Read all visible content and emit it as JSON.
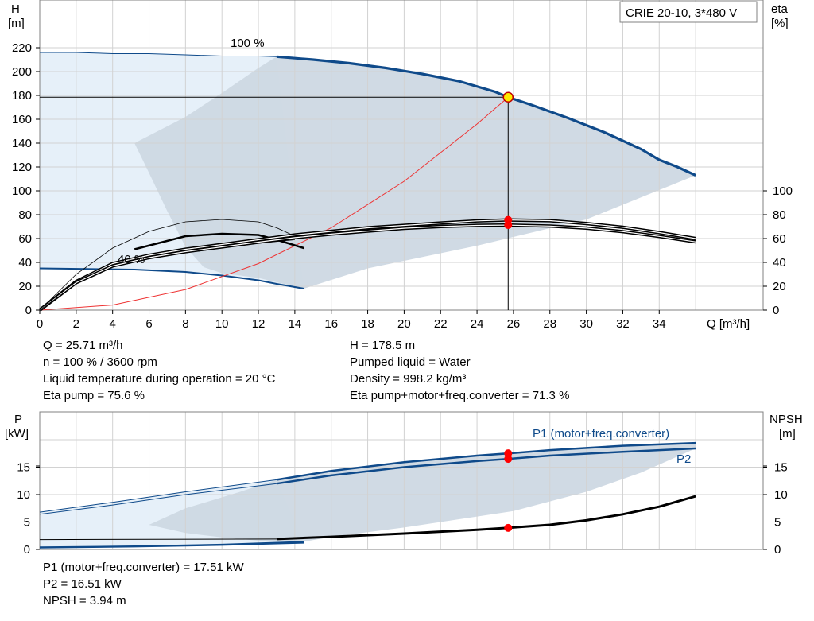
{
  "labels": {
    "h_axis": "H",
    "h_unit": "[m]",
    "eta_axis": "eta",
    "eta_unit": "[%]",
    "q_axis": "Q [m³/h]",
    "pump_box": "CRIE 20-10, 3*480 V",
    "curve_100": "100 %",
    "curve_40": "40 %",
    "p_axis": "P",
    "p_unit": "[kW]",
    "npsh_axis": "NPSH",
    "npsh_unit": "[m]",
    "p1_curve": "P1 (motor+freq.converter)",
    "p2_curve": "P2"
  },
  "info": {
    "q": "Q = 25.71 m³/h",
    "n": "n = 100 % / 3600 rpm",
    "temp": "Liquid temperature during operation = 20 °C",
    "eta_pump": "Eta pump = 75.6 %",
    "h": "H = 178.5 m",
    "liquid": "Pumped liquid = Water",
    "density": "Density = 998.2 kg/m³",
    "eta_total": "Eta pump+motor+freq.converter = 71.3 %",
    "p1": "P1 (motor+freq.converter) = 17.51 kW",
    "p2": "P2 = 16.51 kW",
    "npsh": "NPSH = 3.94 m"
  },
  "colors": {
    "pump_curve": "#0f4a8a",
    "work_area": "#cdd8e3",
    "extended_area": "#e6f0f9",
    "system_curve": "#ee3333",
    "duty_point": "#ff0000",
    "duty_marker": "#ffea00"
  },
  "chart_data": [
    {
      "type": "line",
      "title": "",
      "xlabel": "Q [m³/h]",
      "ylabel": "H [m]",
      "y2label": "eta [%]",
      "xlim": [
        0,
        36
      ],
      "ylim": [
        0,
        230
      ],
      "y2lim": [
        0,
        100
      ],
      "x_ticks": [
        0,
        2,
        4,
        6,
        8,
        10,
        12,
        14,
        16,
        18,
        20,
        22,
        24,
        26,
        28,
        30,
        32,
        34
      ],
      "y_ticks": [
        0,
        20,
        40,
        60,
        80,
        100,
        120,
        140,
        160,
        180,
        200,
        220
      ],
      "y2_ticks": [
        0,
        20,
        40,
        60,
        80,
        100
      ],
      "grid": true,
      "series": [
        {
          "name": "100 %",
          "axis": "H",
          "x": [
            0,
            2,
            4,
            6,
            8,
            10,
            12,
            13,
            15,
            17,
            19,
            21,
            23,
            25,
            25.71,
            27,
            29,
            31,
            33,
            34,
            35,
            36
          ],
          "y": [
            216,
            216,
            215,
            215,
            214,
            213,
            213,
            212.5,
            210,
            207,
            203,
            198,
            192,
            183,
            178.5,
            172,
            161,
            149,
            135,
            126,
            120,
            113
          ]
        },
        {
          "name": "40 %",
          "axis": "H",
          "x": [
            0,
            5.2,
            8,
            10,
            12,
            13,
            14.5
          ],
          "y": [
            35,
            34,
            32,
            29,
            25,
            22,
            18
          ]
        },
        {
          "axis": "H",
          "x": [
            0,
            4,
            8,
            12,
            16,
            20,
            24,
            25.71
          ],
          "y": [
            0,
            4.3,
            17.3,
            39,
            69,
            108,
            156,
            178.5
          ]
        },
        {
          "axis": "eta",
          "x": [
            5.2,
            8,
            10,
            12,
            13,
            14.5
          ],
          "y": [
            51,
            62,
            64,
            63,
            59,
            52
          ]
        },
        {
          "axis": "eta",
          "x": [
            0,
            2,
            4,
            6,
            8,
            10,
            12,
            13,
            14
          ],
          "y": [
            0,
            30,
            52,
            66,
            74,
            76,
            74,
            69,
            62
          ]
        },
        {
          "axis": "eta",
          "x": [
            0,
            2,
            4,
            6,
            8,
            10,
            12,
            14,
            16,
            18,
            20,
            22,
            24,
            25.71,
            28,
            30,
            32,
            34,
            36
          ],
          "y": [
            0,
            24,
            39,
            46,
            51,
            55,
            59,
            63,
            66,
            69,
            71,
            73,
            74.8,
            75.6,
            75,
            72.6,
            69.5,
            65,
            60
          ]
        },
        {
          "axis": "eta",
          "x": [
            0,
            2,
            4,
            6,
            8,
            10,
            12,
            14,
            16,
            18,
            20,
            22,
            24,
            25.71,
            28,
            30,
            32,
            34,
            36
          ],
          "y": [
            0,
            23,
            37,
            44,
            49,
            53,
            57,
            60.7,
            63.7,
            66.3,
            68.6,
            70.1,
            71,
            71.3,
            70.5,
            68.7,
            65.8,
            61.8,
            57.2
          ]
        }
      ],
      "duty_point": {
        "q": 25.71,
        "h": 178.5,
        "eta_pump": 75.6,
        "eta_total": 71.3
      }
    },
    {
      "type": "line",
      "title": "",
      "xlabel": "Q [m³/h]",
      "ylabel": "P [kW]",
      "y2label": "NPSH [m]",
      "xlim": [
        0,
        36
      ],
      "ylim": [
        0,
        20
      ],
      "y2lim": [
        0,
        20
      ],
      "y_ticks": [
        0,
        5,
        10,
        15
      ],
      "y2_ticks": [
        0,
        5,
        10,
        15
      ],
      "grid": true,
      "series": [
        {
          "name": "P1 (motor+freq.converter)",
          "axis": "P",
          "x": [
            0,
            4,
            8,
            13,
            16,
            20,
            24,
            25.71,
            28,
            32,
            36
          ],
          "y": [
            6.8,
            8.6,
            10.5,
            12.7,
            14.3,
            15.9,
            17.1,
            17.51,
            18.1,
            18.9,
            19.4
          ]
        },
        {
          "name": "P2",
          "axis": "P",
          "x": [
            0,
            4,
            8,
            13,
            16,
            20,
            24,
            25.71,
            28,
            32,
            36
          ],
          "y": [
            6.4,
            8.1,
            10,
            12,
            13.5,
            15,
            16.1,
            16.51,
            17.1,
            17.8,
            18.4
          ]
        },
        {
          "axis": "P",
          "x": [
            0,
            5.2,
            10,
            14.5
          ],
          "y": [
            0.4,
            0.6,
            0.9,
            1.4
          ]
        },
        {
          "axis": "P",
          "x": [
            0,
            5.2,
            10,
            14.5
          ],
          "y": [
            0.3,
            0.5,
            0.8,
            1.2
          ]
        },
        {
          "axis": "NPSH",
          "x": [
            0,
            13,
            16,
            20,
            24,
            25.71,
            28,
            30,
            32,
            34,
            36
          ],
          "y": [
            1.8,
            1.9,
            2.3,
            2.9,
            3.6,
            3.94,
            4.5,
            5.3,
            6.4,
            7.8,
            9.7
          ]
        }
      ],
      "duty_point": {
        "q": 25.71,
        "p1": 17.51,
        "p2": 16.51,
        "npsh": 3.94
      }
    }
  ]
}
